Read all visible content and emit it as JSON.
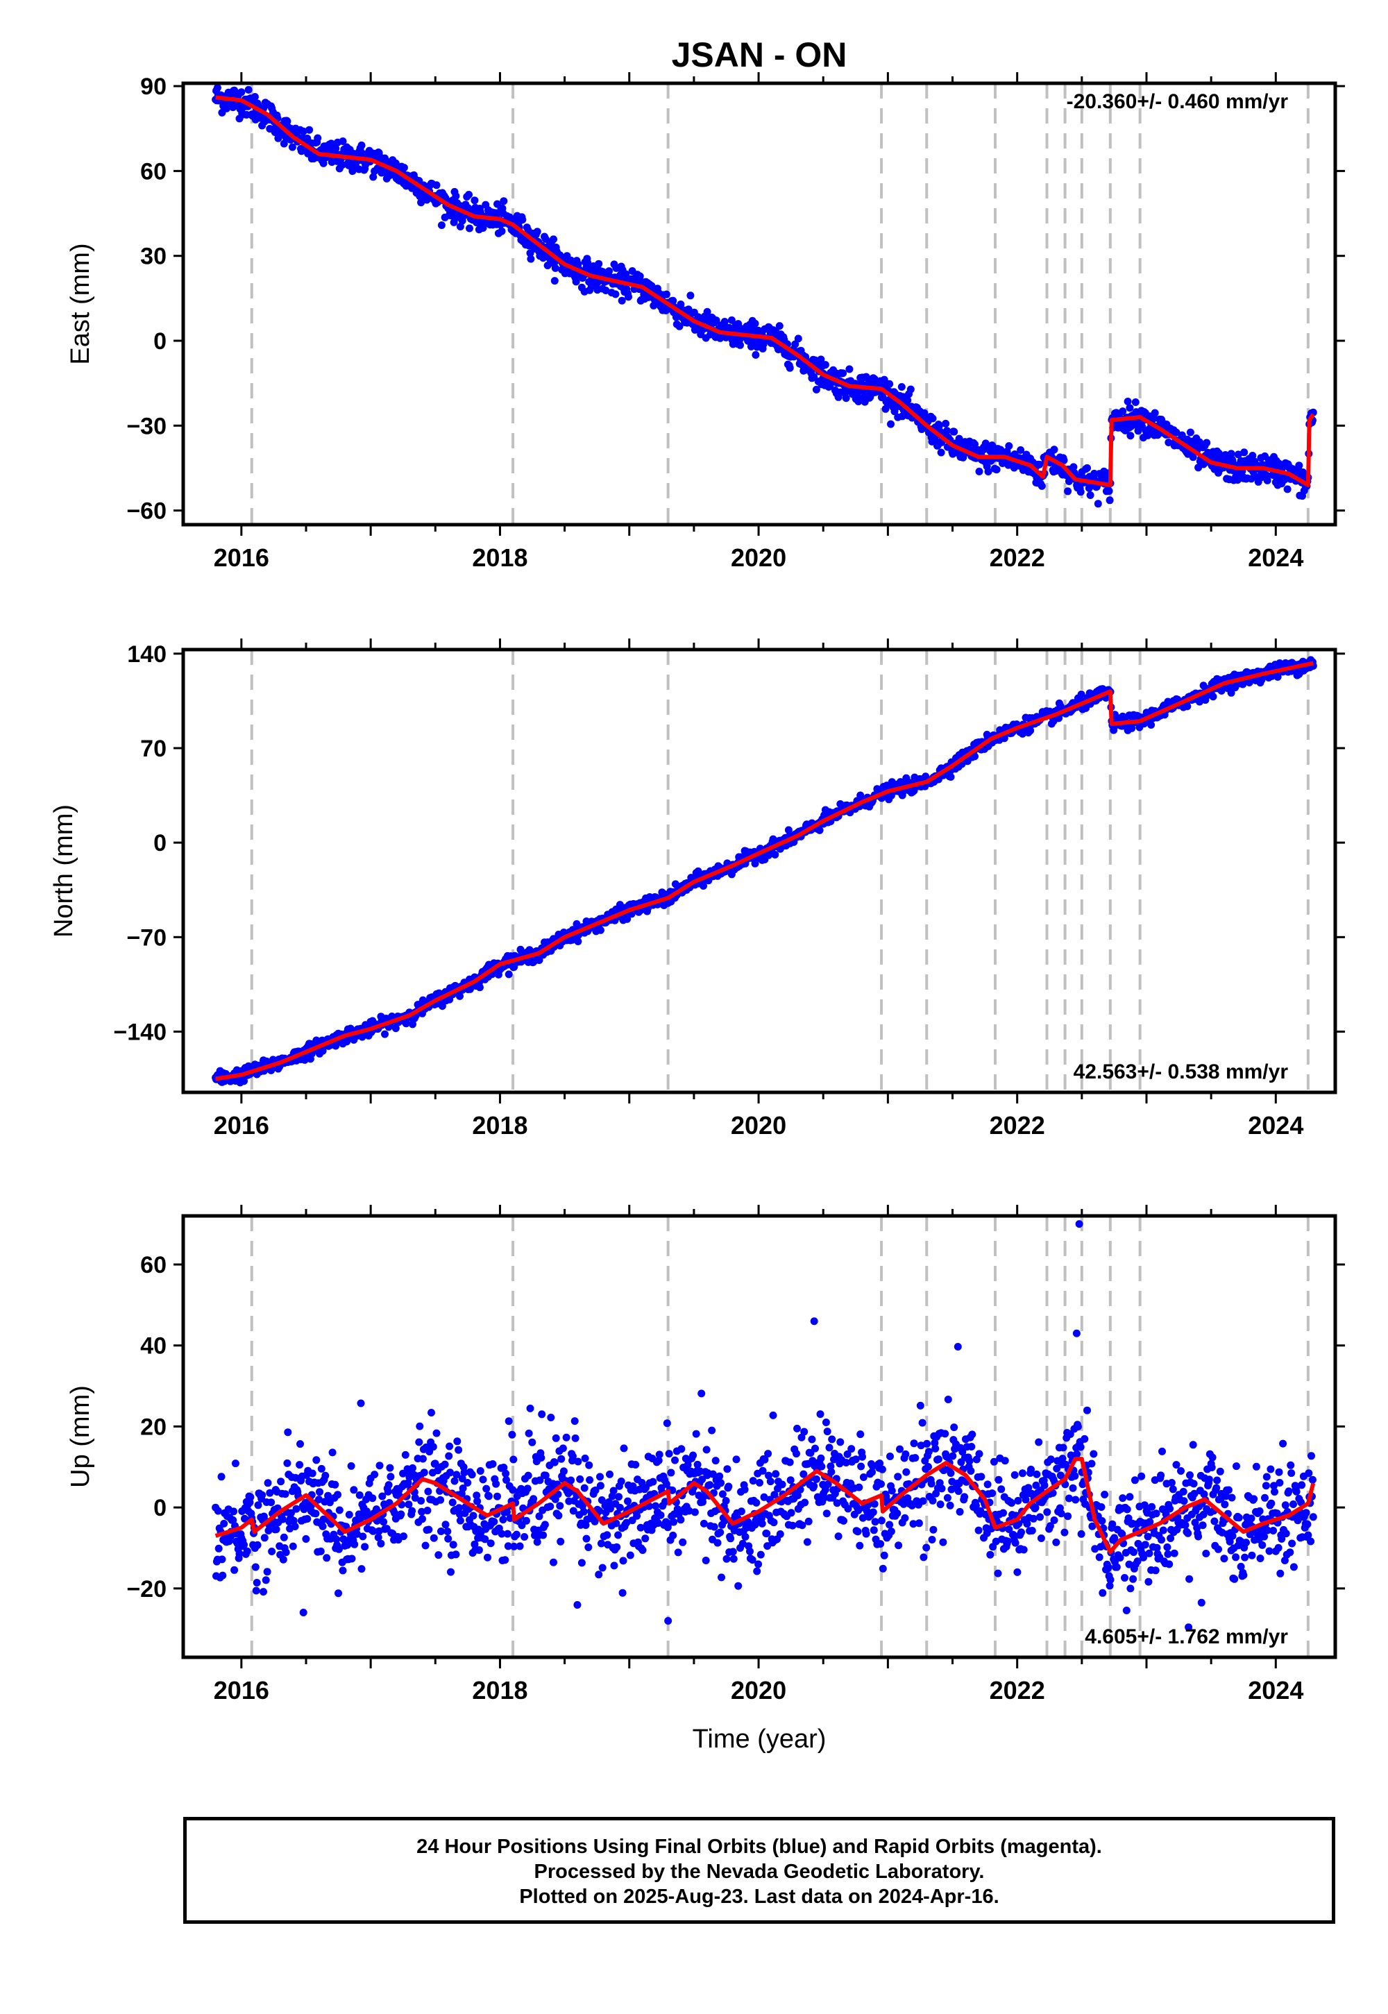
{
  "title": "JSAN - ON",
  "xlabel": "Time (year)",
  "footer": {
    "line1": "24 Hour Positions Using Final Orbits (blue) and Rapid Orbits (magenta).",
    "line2": "Processed by the Nevada Geodetic Laboratory.",
    "line3": "Plotted on 2025-Aug-23. Last data on 2024-Apr-16."
  },
  "colors": {
    "data": "#0000ff",
    "model": "#ff0000",
    "event_lines": "#c0c0c0"
  },
  "chart_data": [
    {
      "type": "scatter",
      "component": "east",
      "ylabel": "East (mm)",
      "rate_label": "-20.360+/- 0.460 mm/yr",
      "rate_label_position": "top-right",
      "xlim": [
        2015.55,
        2024.46
      ],
      "ylim": [
        -65,
        91
      ],
      "yticks": [
        -60,
        -30,
        0,
        30,
        60,
        90
      ],
      "ytick_labels": [
        "−60",
        "−30",
        "0",
        "30",
        "60",
        "90"
      ],
      "xticks": [
        2016,
        2018,
        2020,
        2022,
        2024
      ],
      "xtick_labels": [
        "2016",
        "2018",
        "2020",
        "2022",
        "2024"
      ],
      "event_lines": [
        2016.08,
        2018.1,
        2019.3,
        2020.95,
        2021.3,
        2021.83,
        2022.23,
        2022.37,
        2022.5,
        2022.72,
        2022.95,
        2024.25
      ],
      "model": [
        [
          2015.8,
          86
        ],
        [
          2016.0,
          85
        ],
        [
          2016.2,
          80
        ],
        [
          2016.4,
          72
        ],
        [
          2016.6,
          66
        ],
        [
          2016.8,
          65
        ],
        [
          2017.0,
          64
        ],
        [
          2017.2,
          60
        ],
        [
          2017.4,
          54
        ],
        [
          2017.6,
          48
        ],
        [
          2017.8,
          44
        ],
        [
          2018.0,
          43
        ],
        [
          2018.1,
          41
        ],
        [
          2018.3,
          34
        ],
        [
          2018.5,
          27
        ],
        [
          2018.7,
          23
        ],
        [
          2018.9,
          21
        ],
        [
          2019.1,
          19
        ],
        [
          2019.3,
          13
        ],
        [
          2019.5,
          7
        ],
        [
          2019.7,
          3
        ],
        [
          2019.9,
          2
        ],
        [
          2020.1,
          1
        ],
        [
          2020.3,
          -5
        ],
        [
          2020.5,
          -12
        ],
        [
          2020.7,
          -16
        ],
        [
          2020.95,
          -17
        ],
        [
          2021.1,
          -22
        ],
        [
          2021.3,
          -30
        ],
        [
          2021.5,
          -37
        ],
        [
          2021.7,
          -41
        ],
        [
          2021.9,
          -41
        ],
        [
          2022.1,
          -44
        ],
        [
          2022.2,
          -48
        ],
        [
          2022.23,
          -41
        ],
        [
          2022.35,
          -44
        ],
        [
          2022.45,
          -49
        ],
        [
          2022.72,
          -51
        ],
        [
          2022.73,
          -28
        ],
        [
          2022.95,
          -27
        ],
        [
          2023.1,
          -31
        ],
        [
          2023.3,
          -37
        ],
        [
          2023.5,
          -43
        ],
        [
          2023.7,
          -45
        ],
        [
          2023.9,
          -45
        ],
        [
          2024.1,
          -47
        ],
        [
          2024.25,
          -51
        ],
        [
          2024.26,
          -28
        ],
        [
          2024.29,
          -26
        ]
      ],
      "scatter_spread": 2.5
    },
    {
      "type": "scatter",
      "component": "north",
      "ylabel": "North (mm)",
      "rate_label": "42.563+/- 0.538 mm/yr",
      "rate_label_position": "bottom-right",
      "xlim": [
        2015.55,
        2024.46
      ],
      "ylim": [
        -185,
        143
      ],
      "yticks": [
        -140,
        -70,
        0,
        70,
        140
      ],
      "ytick_labels": [
        "−140",
        "−70",
        "0",
        "70",
        "140"
      ],
      "xticks": [
        2016,
        2018,
        2020,
        2022,
        2024
      ],
      "xtick_labels": [
        "2016",
        "2018",
        "2020",
        "2022",
        "2024"
      ],
      "event_lines": [
        2016.08,
        2018.1,
        2019.3,
        2020.95,
        2021.3,
        2021.83,
        2022.23,
        2022.37,
        2022.5,
        2022.72,
        2022.95,
        2024.25
      ],
      "model": [
        [
          2015.8,
          -175
        ],
        [
          2016.0,
          -172
        ],
        [
          2016.3,
          -163
        ],
        [
          2016.5,
          -155
        ],
        [
          2016.8,
          -143
        ],
        [
          2017.0,
          -138
        ],
        [
          2017.3,
          -128
        ],
        [
          2017.5,
          -117
        ],
        [
          2017.8,
          -103
        ],
        [
          2018.0,
          -90
        ],
        [
          2018.3,
          -82
        ],
        [
          2018.5,
          -70
        ],
        [
          2018.8,
          -58
        ],
        [
          2019.0,
          -50
        ],
        [
          2019.3,
          -41
        ],
        [
          2019.5,
          -29
        ],
        [
          2019.8,
          -17
        ],
        [
          2020.0,
          -8
        ],
        [
          2020.3,
          5
        ],
        [
          2020.5,
          16
        ],
        [
          2020.8,
          30
        ],
        [
          2021.0,
          38
        ],
        [
          2021.3,
          45
        ],
        [
          2021.5,
          57
        ],
        [
          2021.8,
          77
        ],
        [
          2022.0,
          85
        ],
        [
          2022.3,
          95
        ],
        [
          2022.5,
          103
        ],
        [
          2022.72,
          112
        ],
        [
          2022.73,
          88
        ],
        [
          2022.95,
          90
        ],
        [
          2023.3,
          105
        ],
        [
          2023.6,
          118
        ],
        [
          2023.9,
          125
        ],
        [
          2024.29,
          133
        ]
      ],
      "scatter_spread": 2.5
    },
    {
      "type": "scatter",
      "component": "up",
      "ylabel": "Up (mm)",
      "rate_label": "4.605+/- 1.762 mm/yr",
      "rate_label_position": "bottom-right",
      "xlim": [
        2015.55,
        2024.46
      ],
      "ylim": [
        -37,
        72
      ],
      "yticks": [
        -20,
        0,
        20,
        40,
        60
      ],
      "ytick_labels": [
        "−20",
        "0",
        "20",
        "40",
        "60"
      ],
      "xticks": [
        2016,
        2018,
        2020,
        2022,
        2024
      ],
      "xtick_labels": [
        "2016",
        "2018",
        "2020",
        "2022",
        "2024"
      ],
      "event_lines": [
        2016.08,
        2018.1,
        2019.3,
        2020.95,
        2021.3,
        2021.83,
        2022.23,
        2022.37,
        2022.5,
        2022.72,
        2022.95,
        2024.25
      ],
      "model": [
        [
          2015.8,
          -7
        ],
        [
          2016.0,
          -5
        ],
        [
          2016.08,
          -3
        ],
        [
          2016.1,
          -6
        ],
        [
          2016.3,
          -1
        ],
        [
          2016.5,
          3
        ],
        [
          2016.6,
          0
        ],
        [
          2016.8,
          -6
        ],
        [
          2017.0,
          -3
        ],
        [
          2017.2,
          1
        ],
        [
          2017.4,
          7
        ],
        [
          2017.5,
          6
        ],
        [
          2017.7,
          2
        ],
        [
          2017.9,
          -2
        ],
        [
          2018.1,
          1
        ],
        [
          2018.11,
          -3
        ],
        [
          2018.3,
          1
        ],
        [
          2018.5,
          6
        ],
        [
          2018.6,
          4
        ],
        [
          2018.8,
          -4
        ],
        [
          2019.0,
          -1
        ],
        [
          2019.3,
          4
        ],
        [
          2019.31,
          1
        ],
        [
          2019.5,
          6
        ],
        [
          2019.6,
          4
        ],
        [
          2019.8,
          -4
        ],
        [
          2020.0,
          -1
        ],
        [
          2020.2,
          3
        ],
        [
          2020.45,
          9
        ],
        [
          2020.6,
          6
        ],
        [
          2020.8,
          1
        ],
        [
          2020.95,
          3
        ],
        [
          2020.96,
          -1
        ],
        [
          2021.1,
          3
        ],
        [
          2021.3,
          8
        ],
        [
          2021.45,
          11
        ],
        [
          2021.6,
          8
        ],
        [
          2021.75,
          2
        ],
        [
          2021.83,
          -5
        ],
        [
          2022.0,
          -3
        ],
        [
          2022.1,
          1
        ],
        [
          2022.23,
          4
        ],
        [
          2022.37,
          7
        ],
        [
          2022.45,
          12
        ],
        [
          2022.5,
          12
        ],
        [
          2022.6,
          -3
        ],
        [
          2022.72,
          -11
        ],
        [
          2022.8,
          -8
        ],
        [
          2022.95,
          -6
        ],
        [
          2023.1,
          -4
        ],
        [
          2023.3,
          0
        ],
        [
          2023.45,
          2
        ],
        [
          2023.6,
          -2
        ],
        [
          2023.75,
          -6
        ],
        [
          2023.9,
          -4
        ],
        [
          2024.1,
          -2
        ],
        [
          2024.25,
          1
        ],
        [
          2024.29,
          6
        ]
      ],
      "scatter_spread": 6.5
    }
  ]
}
